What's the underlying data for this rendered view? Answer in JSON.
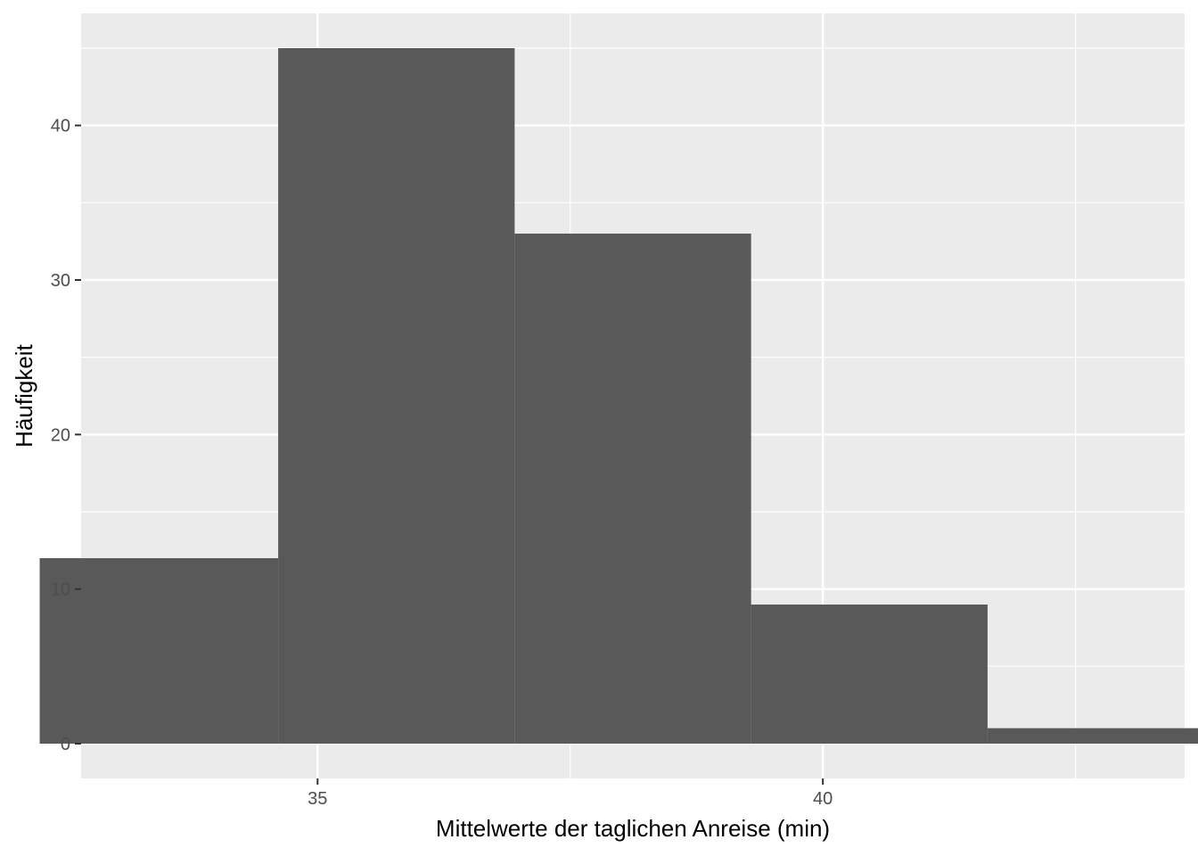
{
  "chart_data": {
    "type": "bar",
    "subtype": "histogram",
    "xlabel": "Mittelwerte der taglichen Anreise (min)",
    "ylabel": "Häufigkeit",
    "xlim": [
      32.66,
      43.58
    ],
    "ylim": [
      -2.25,
      47.25
    ],
    "x_ticks": [
      35,
      40
    ],
    "y_ticks": [
      0,
      10,
      20,
      30,
      40
    ],
    "x_minor_ticks": [
      32.5,
      37.5,
      42.5
    ],
    "y_minor_ticks": [
      5,
      15,
      25,
      35,
      45
    ],
    "bins": [
      {
        "x0": 32.25,
        "x1": 34.61,
        "count": 12
      },
      {
        "x0": 34.61,
        "x1": 36.95,
        "count": 45
      },
      {
        "x0": 36.95,
        "x1": 39.29,
        "count": 33
      },
      {
        "x0": 39.29,
        "x1": 41.63,
        "count": 9
      },
      {
        "x0": 41.63,
        "x1": 43.97,
        "count": 1
      }
    ],
    "bar_color": "#595959",
    "panel_background": "#ebebeb",
    "grid_color": "#ffffff",
    "grid": true,
    "legend": "none"
  }
}
